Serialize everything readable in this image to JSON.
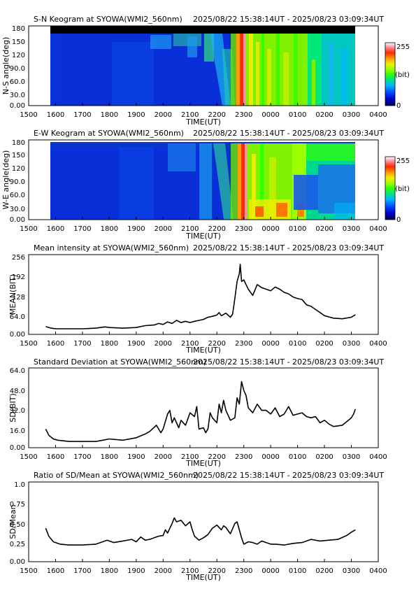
{
  "station": "SYOWA",
  "instrument": "WMI2_560nm",
  "time_range": "2025/08/22 15:38:14UT - 2025/08/23 03:09:34UT",
  "colors": {
    "background": "#ffffff",
    "axes": "#000000",
    "keogram_header": "#000000",
    "colormap": [
      "#000050",
      "#0000c8",
      "#0040ff",
      "#00b4ff",
      "#00e87a",
      "#32ff00",
      "#9cff00",
      "#f0ee00",
      "#ff9a00",
      "#ff2a00",
      "#ff90a0",
      "#ffffff"
    ]
  },
  "x_axis": {
    "label": "TIME(UT)",
    "ticks": [
      "1500",
      "1600",
      "1700",
      "1800",
      "1900",
      "2000",
      "2100",
      "2200",
      "2300",
      "0000",
      "0100",
      "0200",
      "0300",
      "0400"
    ]
  },
  "colorbar": {
    "max_label": "255",
    "unit_label": "(bit)",
    "min_label": "0"
  },
  "chart_data": [
    {
      "type": "heatmap",
      "title": "S-N Keogram at SYOWA(WMI2_560nm)",
      "time_label": "2025/08/22 15:38:14UT - 2025/08/23 03:09:34UT",
      "xlabel": "TIME(UT)",
      "ylabel": "N-S angle(deg)",
      "xlim": [
        "15:00",
        "04:00"
      ],
      "data_extent": [
        "15:38",
        "03:09"
      ],
      "ylim": [
        0,
        180
      ],
      "yticks": [
        "0.00",
        "30.0",
        "60.0",
        "90.0",
        "120",
        "150",
        "180"
      ],
      "colorbar": {
        "range": [
          0,
          255
        ],
        "unit": "(bit)"
      },
      "features": [
        "dark blue (~20-40 bit) from 15:38 to ~21:00",
        "weak arcs ~60-80 bit near 150-170 deg around 19:30-21:40",
        "arc moving equatorward (high to low angle) 21:45-22:40",
        "bright vertical red/yellow structure at ~22:45-22:55 spanning all angles",
        "green/yellow (~100-170 bit) from 22:50 to ~02:30 with streaks",
        "fading to blue-green 02:30-03:09",
        "saturated black band at 165-180 deg (horizon mask)"
      ]
    },
    {
      "type": "heatmap",
      "title": "E-W Keogram at SYOWA(WMI2_560nm)",
      "time_label": "2025/08/22 15:38:14UT - 2025/08/23 03:09:34UT",
      "xlabel": "TIME(UT)",
      "ylabel": "W-E angle(deg)",
      "xlim": [
        "15:00",
        "04:00"
      ],
      "data_extent": [
        "15:38",
        "03:09"
      ],
      "ylim": [
        0,
        180
      ],
      "yticks": [
        "0.00",
        "30.0",
        "60.0",
        "90.0",
        "120",
        "150",
        "180"
      ],
      "colorbar": {
        "range": [
          0,
          255
        ],
        "unit": "(bit)"
      },
      "features": [
        "dark blue from 15:38 to ~21:00",
        "brightening 21:45-22:40",
        "bright red/yellow vertical band near 22:50",
        "green/yellow 22:50-02:30, red spots near 0-30 deg around 23:00-01:30",
        "blue region 60-150 deg after 01:30"
      ]
    },
    {
      "type": "line",
      "title": "Mean intensity at SYOWA(WMI2_560nm)",
      "time_label": "2025/08/22 15:38:14UT - 2025/08/23 03:09:34UT",
      "xlabel": "TIME(UT)",
      "ylabel": "MEAN(BIT)",
      "xlim": [
        "15:00",
        "04:00"
      ],
      "ylim": [
        0,
        256
      ],
      "yticks": [
        "0.00",
        "64.0",
        "128",
        "192",
        "256"
      ],
      "series": [
        {
          "x": [
            "15:38",
            "15:50",
            "16:00",
            "16:30",
            "17:00",
            "17:30",
            "17:50",
            "18:00",
            "18:30",
            "19:00",
            "19:20",
            "19:40",
            "19:50",
            "20:00",
            "20:10",
            "20:20",
            "20:30",
            "20:40",
            "20:50",
            "21:00",
            "21:10",
            "21:20",
            "21:30",
            "21:40",
            "21:50",
            "22:00",
            "22:05",
            "22:10",
            "22:20",
            "22:30",
            "22:35",
            "22:40",
            "22:45",
            "22:50",
            "22:52",
            "22:55",
            "23:00",
            "23:05",
            "23:10",
            "23:20",
            "23:30",
            "23:40",
            "23:50",
            "00:00",
            "00:10",
            "00:20",
            "00:30",
            "00:40",
            "00:50",
            "01:00",
            "01:10",
            "01:20",
            "01:30",
            "01:40",
            "01:50",
            "02:00",
            "02:20",
            "02:40",
            "03:00",
            "03:09"
          ],
          "y": [
            25,
            20,
            18,
            18,
            18,
            20,
            24,
            22,
            20,
            22,
            28,
            30,
            35,
            32,
            40,
            35,
            45,
            38,
            42,
            38,
            42,
            45,
            48,
            55,
            58,
            62,
            70,
            60,
            68,
            55,
            65,
            115,
            170,
            195,
            225,
            170,
            175,
            160,
            145,
            125,
            160,
            150,
            145,
            140,
            152,
            145,
            135,
            130,
            120,
            115,
            112,
            95,
            90,
            80,
            70,
            60,
            52,
            50,
            55,
            63
          ]
        }
      ]
    },
    {
      "type": "line",
      "title": "Standard Deviation at SYOWA(WMI2_560nm)",
      "time_label": "2025/08/22 15:38:14UT - 2025/08/23 03:09:34UT",
      "xlabel": "TIME(UT)",
      "ylabel": "SD(BIT)",
      "xlim": [
        "15:00",
        "04:00"
      ],
      "ylim": [
        0,
        64
      ],
      "yticks": [
        "0.00",
        "16.0",
        "32.0",
        "48.0",
        "64.0"
      ],
      "series": [
        {
          "x": [
            "15:38",
            "15:45",
            "15:55",
            "16:05",
            "16:30",
            "17:00",
            "17:30",
            "17:45",
            "18:00",
            "18:30",
            "19:00",
            "19:20",
            "19:30",
            "19:45",
            "19:55",
            "20:00",
            "20:10",
            "20:15",
            "20:20",
            "20:25",
            "20:35",
            "20:40",
            "20:50",
            "21:00",
            "21:10",
            "21:15",
            "21:20",
            "21:30",
            "21:35",
            "21:40",
            "21:45",
            "21:50",
            "22:00",
            "22:05",
            "22:10",
            "22:15",
            "22:20",
            "22:30",
            "22:40",
            "22:45",
            "22:50",
            "22:55",
            "23:00",
            "23:05",
            "23:10",
            "23:15",
            "23:20",
            "23:30",
            "23:40",
            "23:50",
            "00:00",
            "00:10",
            "00:20",
            "00:30",
            "00:40",
            "00:50",
            "01:00",
            "01:10",
            "01:20",
            "01:30",
            "01:40",
            "01:50",
            "02:00",
            "02:10",
            "02:20",
            "02:40",
            "02:50",
            "03:00",
            "03:05",
            "03:09"
          ],
          "y": [
            15,
            10,
            7,
            6,
            5,
            5,
            5,
            6,
            7,
            6,
            8,
            11,
            13,
            18,
            12,
            15,
            27,
            30,
            20,
            24,
            16,
            22,
            18,
            28,
            25,
            33,
            15,
            16,
            12,
            15,
            28,
            24,
            20,
            35,
            28,
            38,
            30,
            22,
            24,
            40,
            35,
            53,
            46,
            42,
            32,
            30,
            28,
            35,
            30,
            30,
            27,
            32,
            25,
            27,
            33,
            26,
            27,
            28,
            25,
            24,
            25,
            20,
            22,
            19,
            17,
            18,
            21,
            24,
            27,
            31
          ]
        }
      ]
    },
    {
      "type": "line",
      "title": "Ratio of SD/Mean at SYOWA(WMI2_560nm)",
      "time_label": "2025/08/22 15:38:14UT - 2025/08/23 03:09:34UT",
      "xlabel": "TIME(UT)",
      "ylabel": "SD/Mean",
      "xlim": [
        "15:00",
        "04:00"
      ],
      "ylim": [
        0,
        1
      ],
      "yticks": [
        "0.00",
        "0.25",
        "0.50",
        "0.75",
        "1.0"
      ],
      "series": [
        {
          "x": [
            "15:38",
            "15:45",
            "15:55",
            "16:10",
            "16:30",
            "17:00",
            "17:30",
            "17:45",
            "17:55",
            "18:10",
            "18:30",
            "18:50",
            "19:00",
            "19:10",
            "19:20",
            "19:30",
            "19:40",
            "19:50",
            "20:00",
            "20:05",
            "20:10",
            "20:20",
            "20:25",
            "20:30",
            "20:40",
            "20:50",
            "21:00",
            "21:05",
            "21:10",
            "21:20",
            "21:30",
            "21:40",
            "21:50",
            "22:00",
            "22:10",
            "22:15",
            "22:20",
            "22:30",
            "22:40",
            "22:45",
            "22:50",
            "22:55",
            "23:00",
            "23:10",
            "23:20",
            "23:30",
            "23:40",
            "23:50",
            "00:00",
            "00:10",
            "00:30",
            "00:50",
            "01:10",
            "01:30",
            "01:50",
            "02:10",
            "02:30",
            "02:50",
            "03:00",
            "03:09"
          ],
          "y": [
            0.42,
            0.32,
            0.25,
            0.22,
            0.21,
            0.21,
            0.22,
            0.25,
            0.27,
            0.24,
            0.26,
            0.28,
            0.25,
            0.31,
            0.27,
            0.28,
            0.3,
            0.32,
            0.33,
            0.4,
            0.36,
            0.48,
            0.55,
            0.5,
            0.52,
            0.45,
            0.5,
            0.4,
            0.32,
            0.27,
            0.3,
            0.34,
            0.42,
            0.46,
            0.4,
            0.45,
            0.43,
            0.35,
            0.48,
            0.5,
            0.4,
            0.3,
            0.22,
            0.25,
            0.24,
            0.22,
            0.26,
            0.24,
            0.22,
            0.22,
            0.21,
            0.23,
            0.24,
            0.28,
            0.26,
            0.27,
            0.28,
            0.33,
            0.37,
            0.4
          ]
        }
      ]
    }
  ]
}
